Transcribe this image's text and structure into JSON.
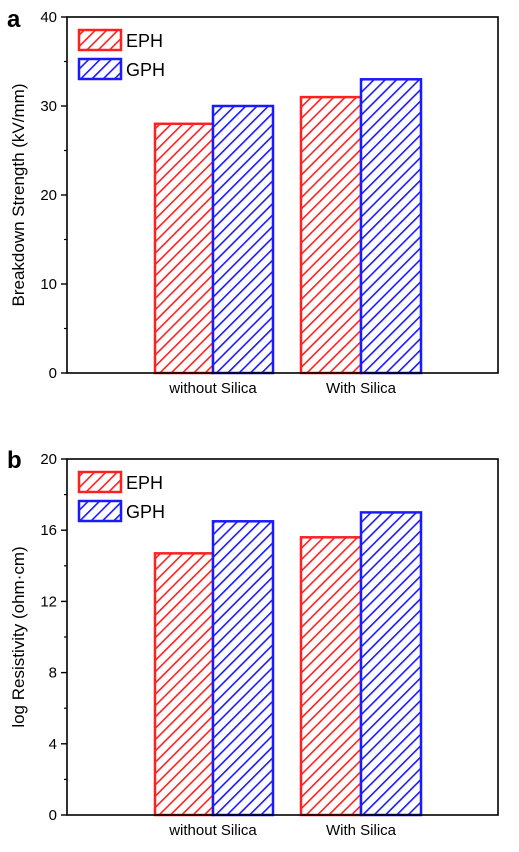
{
  "colors": {
    "EPH": "#ff2020",
    "GPH": "#1a1aff"
  },
  "chart_data": [
    {
      "type": "bar",
      "panel_label": "a",
      "categories": [
        "without Silica",
        "With Silica"
      ],
      "series": [
        {
          "name": "EPH",
          "values": [
            28,
            31
          ]
        },
        {
          "name": "GPH",
          "values": [
            30,
            33
          ]
        }
      ],
      "ylabel": "Breakdown Strength (kV/mm)",
      "xlabel": "",
      "ylim": [
        0,
        40
      ],
      "yticks": [
        0,
        10,
        20,
        30,
        40
      ],
      "legend": "top-left",
      "grid": false
    },
    {
      "type": "bar",
      "panel_label": "b",
      "categories": [
        "without Silica",
        "With Silica"
      ],
      "series": [
        {
          "name": "EPH",
          "values": [
            14.7,
            15.6
          ]
        },
        {
          "name": "GPH",
          "values": [
            16.5,
            17.0
          ]
        }
      ],
      "ylabel": "log Resistivity (ohm·cm)",
      "xlabel": "",
      "ylim": [
        0,
        20
      ],
      "yticks": [
        0,
        4,
        8,
        12,
        16,
        20
      ],
      "legend": "top-left",
      "grid": false
    }
  ]
}
